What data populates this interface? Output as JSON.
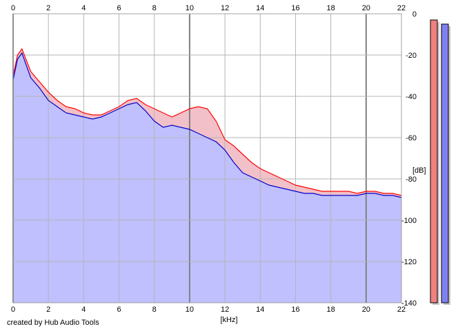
{
  "credit_text": "created by Hub Audio Tools",
  "chart_data": {
    "type": "area",
    "xlabel": "[kHz]",
    "ylabel": "[dB]",
    "xlim": [
      0,
      22
    ],
    "ylim": [
      -140,
      0
    ],
    "x_ticks": [
      0,
      2,
      4,
      6,
      8,
      10,
      12,
      14,
      16,
      18,
      20,
      22
    ],
    "y_ticks": [
      0,
      -20,
      -40,
      -60,
      -80,
      -100,
      -120,
      -140
    ],
    "y_tick_labels": [
      "0",
      "-20",
      "-40",
      "-60",
      "-80",
      "-100",
      "-120",
      "-140"
    ],
    "grid": true,
    "series": [
      {
        "color": "#ff0000",
        "fill": "#f2c0c8",
        "x": [
          0.0,
          0.25,
          0.5,
          1.0,
          1.5,
          2.0,
          2.5,
          3.0,
          3.5,
          4.0,
          4.5,
          5.0,
          5.5,
          6.0,
          6.5,
          7.0,
          7.5,
          8.0,
          8.5,
          9.0,
          9.5,
          10.0,
          10.5,
          11.0,
          11.5,
          12.0,
          12.5,
          13.0,
          13.5,
          14.0,
          14.5,
          15.0,
          15.5,
          16.0,
          16.5,
          17.0,
          17.5,
          18.0,
          18.5,
          19.0,
          19.5,
          20.0,
          20.5,
          21.0,
          21.5,
          22.0
        ],
        "values": [
          -30,
          -20,
          -17,
          -28,
          -33,
          -38,
          -42,
          -45,
          -46,
          -48,
          -49,
          -49,
          -47,
          -45,
          -42,
          -41,
          -44,
          -46,
          -48,
          -50,
          -48,
          -46,
          -45,
          -46,
          -52,
          -61,
          -64,
          -68,
          -72,
          -75,
          -77,
          -79,
          -81,
          -83,
          -84,
          -85,
          -86,
          -86,
          -86,
          -86,
          -87,
          -86,
          -86,
          -87,
          -87,
          -88
        ]
      },
      {
        "color": "#0000cc",
        "fill": "#c0c0ff",
        "x": [
          0.0,
          0.25,
          0.5,
          1.0,
          1.5,
          2.0,
          2.5,
          3.0,
          3.5,
          4.0,
          4.5,
          5.0,
          5.5,
          6.0,
          6.5,
          7.0,
          7.5,
          8.0,
          8.5,
          9.0,
          9.5,
          10.0,
          10.5,
          11.0,
          11.5,
          12.0,
          12.5,
          13.0,
          13.5,
          14.0,
          14.5,
          15.0,
          15.5,
          16.0,
          16.5,
          17.0,
          17.5,
          18.0,
          18.5,
          19.0,
          19.5,
          20.0,
          20.5,
          21.0,
          21.5,
          22.0
        ],
        "values": [
          -32,
          -22,
          -19,
          -31,
          -36,
          -42,
          -45,
          -48,
          -49,
          -50,
          -51,
          -50,
          -48,
          -46,
          -44,
          -43,
          -47,
          -52,
          -55,
          -54,
          -55,
          -56,
          -58,
          -60,
          -62,
          -66,
          -72,
          -77,
          -79,
          -81,
          -83,
          -84,
          -85,
          -86,
          -87,
          -87,
          -88,
          -88,
          -88,
          -88,
          -88,
          -87,
          -87,
          -88,
          -88,
          -89
        ]
      }
    ],
    "level_meters": [
      {
        "color": "#f08080",
        "level_db": -3
      },
      {
        "color": "#8080f0",
        "level_db": -5
      }
    ]
  }
}
